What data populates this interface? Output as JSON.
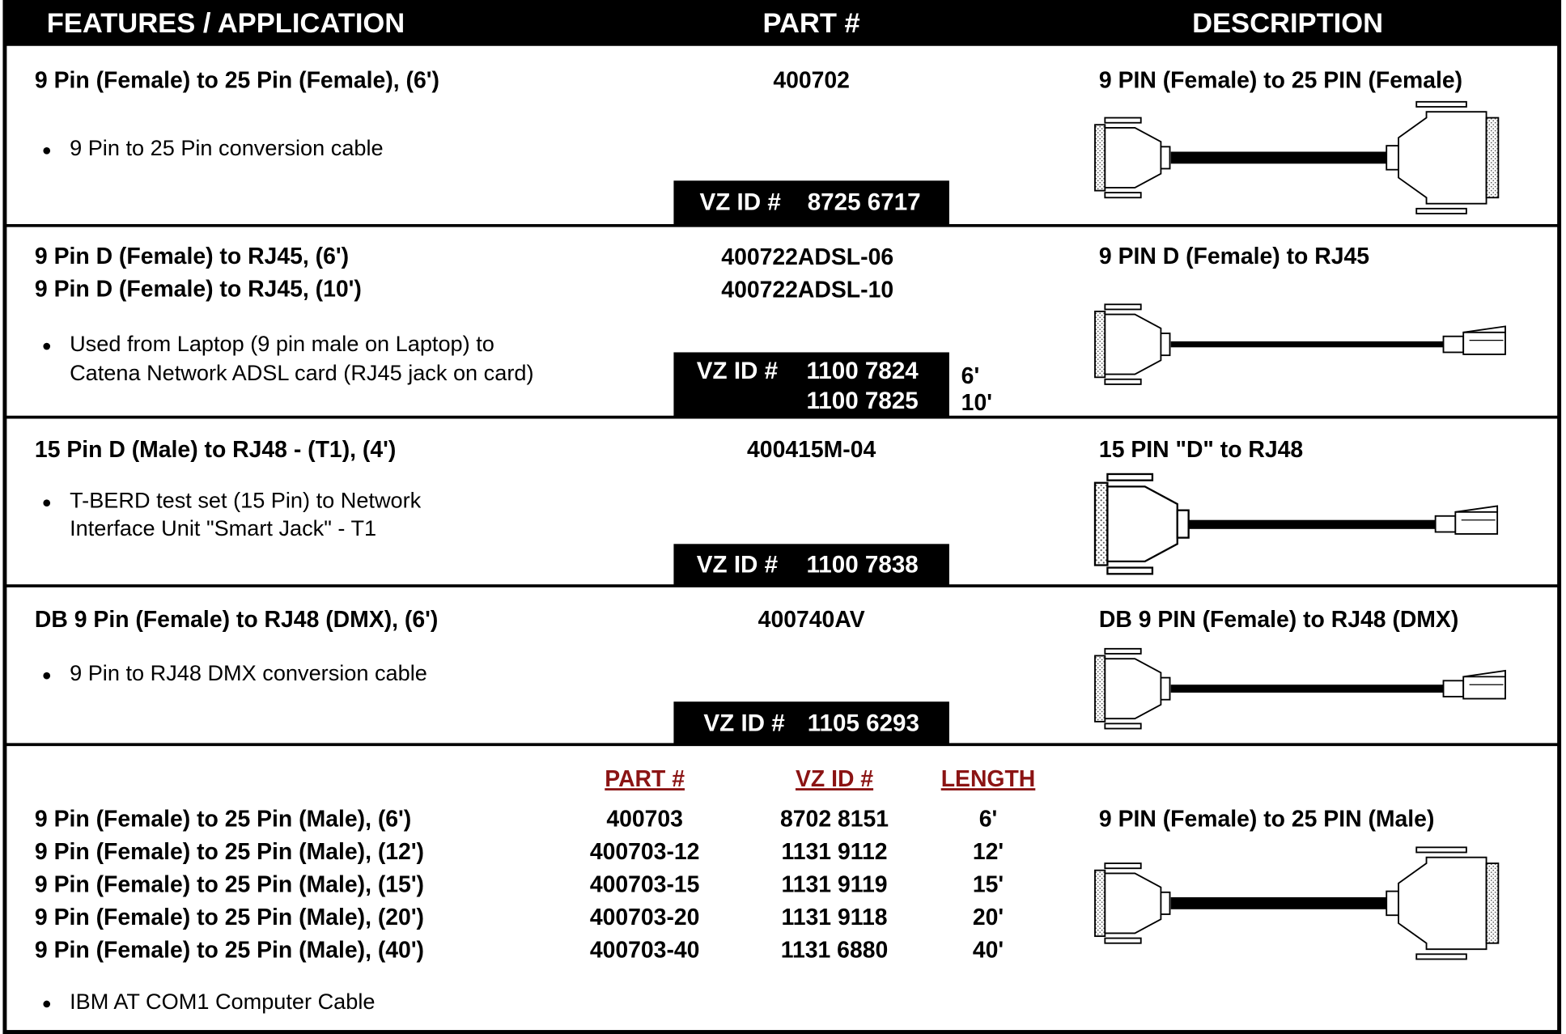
{
  "header": {
    "columns": [
      "FEATURES / APPLICATION",
      "PART #",
      "DESCRIPTION"
    ]
  },
  "rows": [
    {
      "titles": [
        "9 Pin (Female) to 25 Pin (Female), (6')"
      ],
      "parts": [
        "400702"
      ],
      "description": "9 PIN (Female) to 25 PIN (Female)",
      "bullet": [
        "9 Pin to 25 Pin conversion cable"
      ],
      "vz_label": "VZ ID #",
      "vz_ids": [
        "8725 6717"
      ]
    },
    {
      "titles": [
        "9 Pin D (Female) to RJ45,  (6')",
        "9 Pin D (Female) to RJ45,  (10')"
      ],
      "parts": [
        "400722ADSL-06",
        "400722ADSL-10"
      ],
      "description": "9 PIN D (Female) to RJ45",
      "bullet": [
        "Used from Laptop (9 pin male on Laptop) to",
        "Catena Network ADSL card (RJ45 jack on card)"
      ],
      "vz_label": "VZ ID #",
      "vz_ids": [
        "1100 7824",
        "1100 7825"
      ],
      "lengths": [
        "6'",
        "10'"
      ]
    },
    {
      "titles": [
        "15 Pin D (Male) to RJ48 - (T1), (4')"
      ],
      "parts": [
        "400415M-04"
      ],
      "description": "15 PIN \"D\" to RJ48",
      "bullet": [
        "T-BERD test set (15 Pin) to Network",
        "Interface Unit \"Smart Jack\" - T1"
      ],
      "vz_label": "VZ ID #",
      "vz_ids": [
        "1100 7838"
      ]
    },
    {
      "titles": [
        "DB 9 Pin (Female) to RJ48 (DMX), (6')"
      ],
      "parts": [
        "400740AV"
      ],
      "description": "DB 9 PIN (Female) to RJ48 (DMX)",
      "bullet": [
        "9 Pin to RJ48 DMX conversion cable"
      ],
      "vz_label": "VZ ID #",
      "vz_ids": [
        "1105 6293"
      ]
    }
  ],
  "multi": {
    "columns": [
      "PART #",
      "VZ ID #",
      "LENGTH"
    ],
    "items": [
      [
        "9 Pin (Female) to 25 Pin (Male), (6')",
        "400703",
        "8702 8151",
        "6'"
      ],
      [
        "9 Pin (Female) to 25 Pin (Male), (12')",
        "400703-12",
        "1131 9112",
        "12'"
      ],
      [
        "9 Pin (Female) to 25 Pin (Male), (15')",
        "400703-15",
        "1131 9119",
        "15'"
      ],
      [
        "9 Pin (Female) to 25 Pin (Male), (20')",
        "400703-20",
        "1131 9118",
        "20'"
      ],
      [
        "9 Pin (Female) to 25 Pin (Male), (40')",
        "400703-40",
        "1131 6880",
        "40'"
      ]
    ],
    "description": "9 PIN (Female) to 25 PIN (Male)",
    "bullet": [
      "IBM AT COM1 Computer Cable"
    ]
  }
}
